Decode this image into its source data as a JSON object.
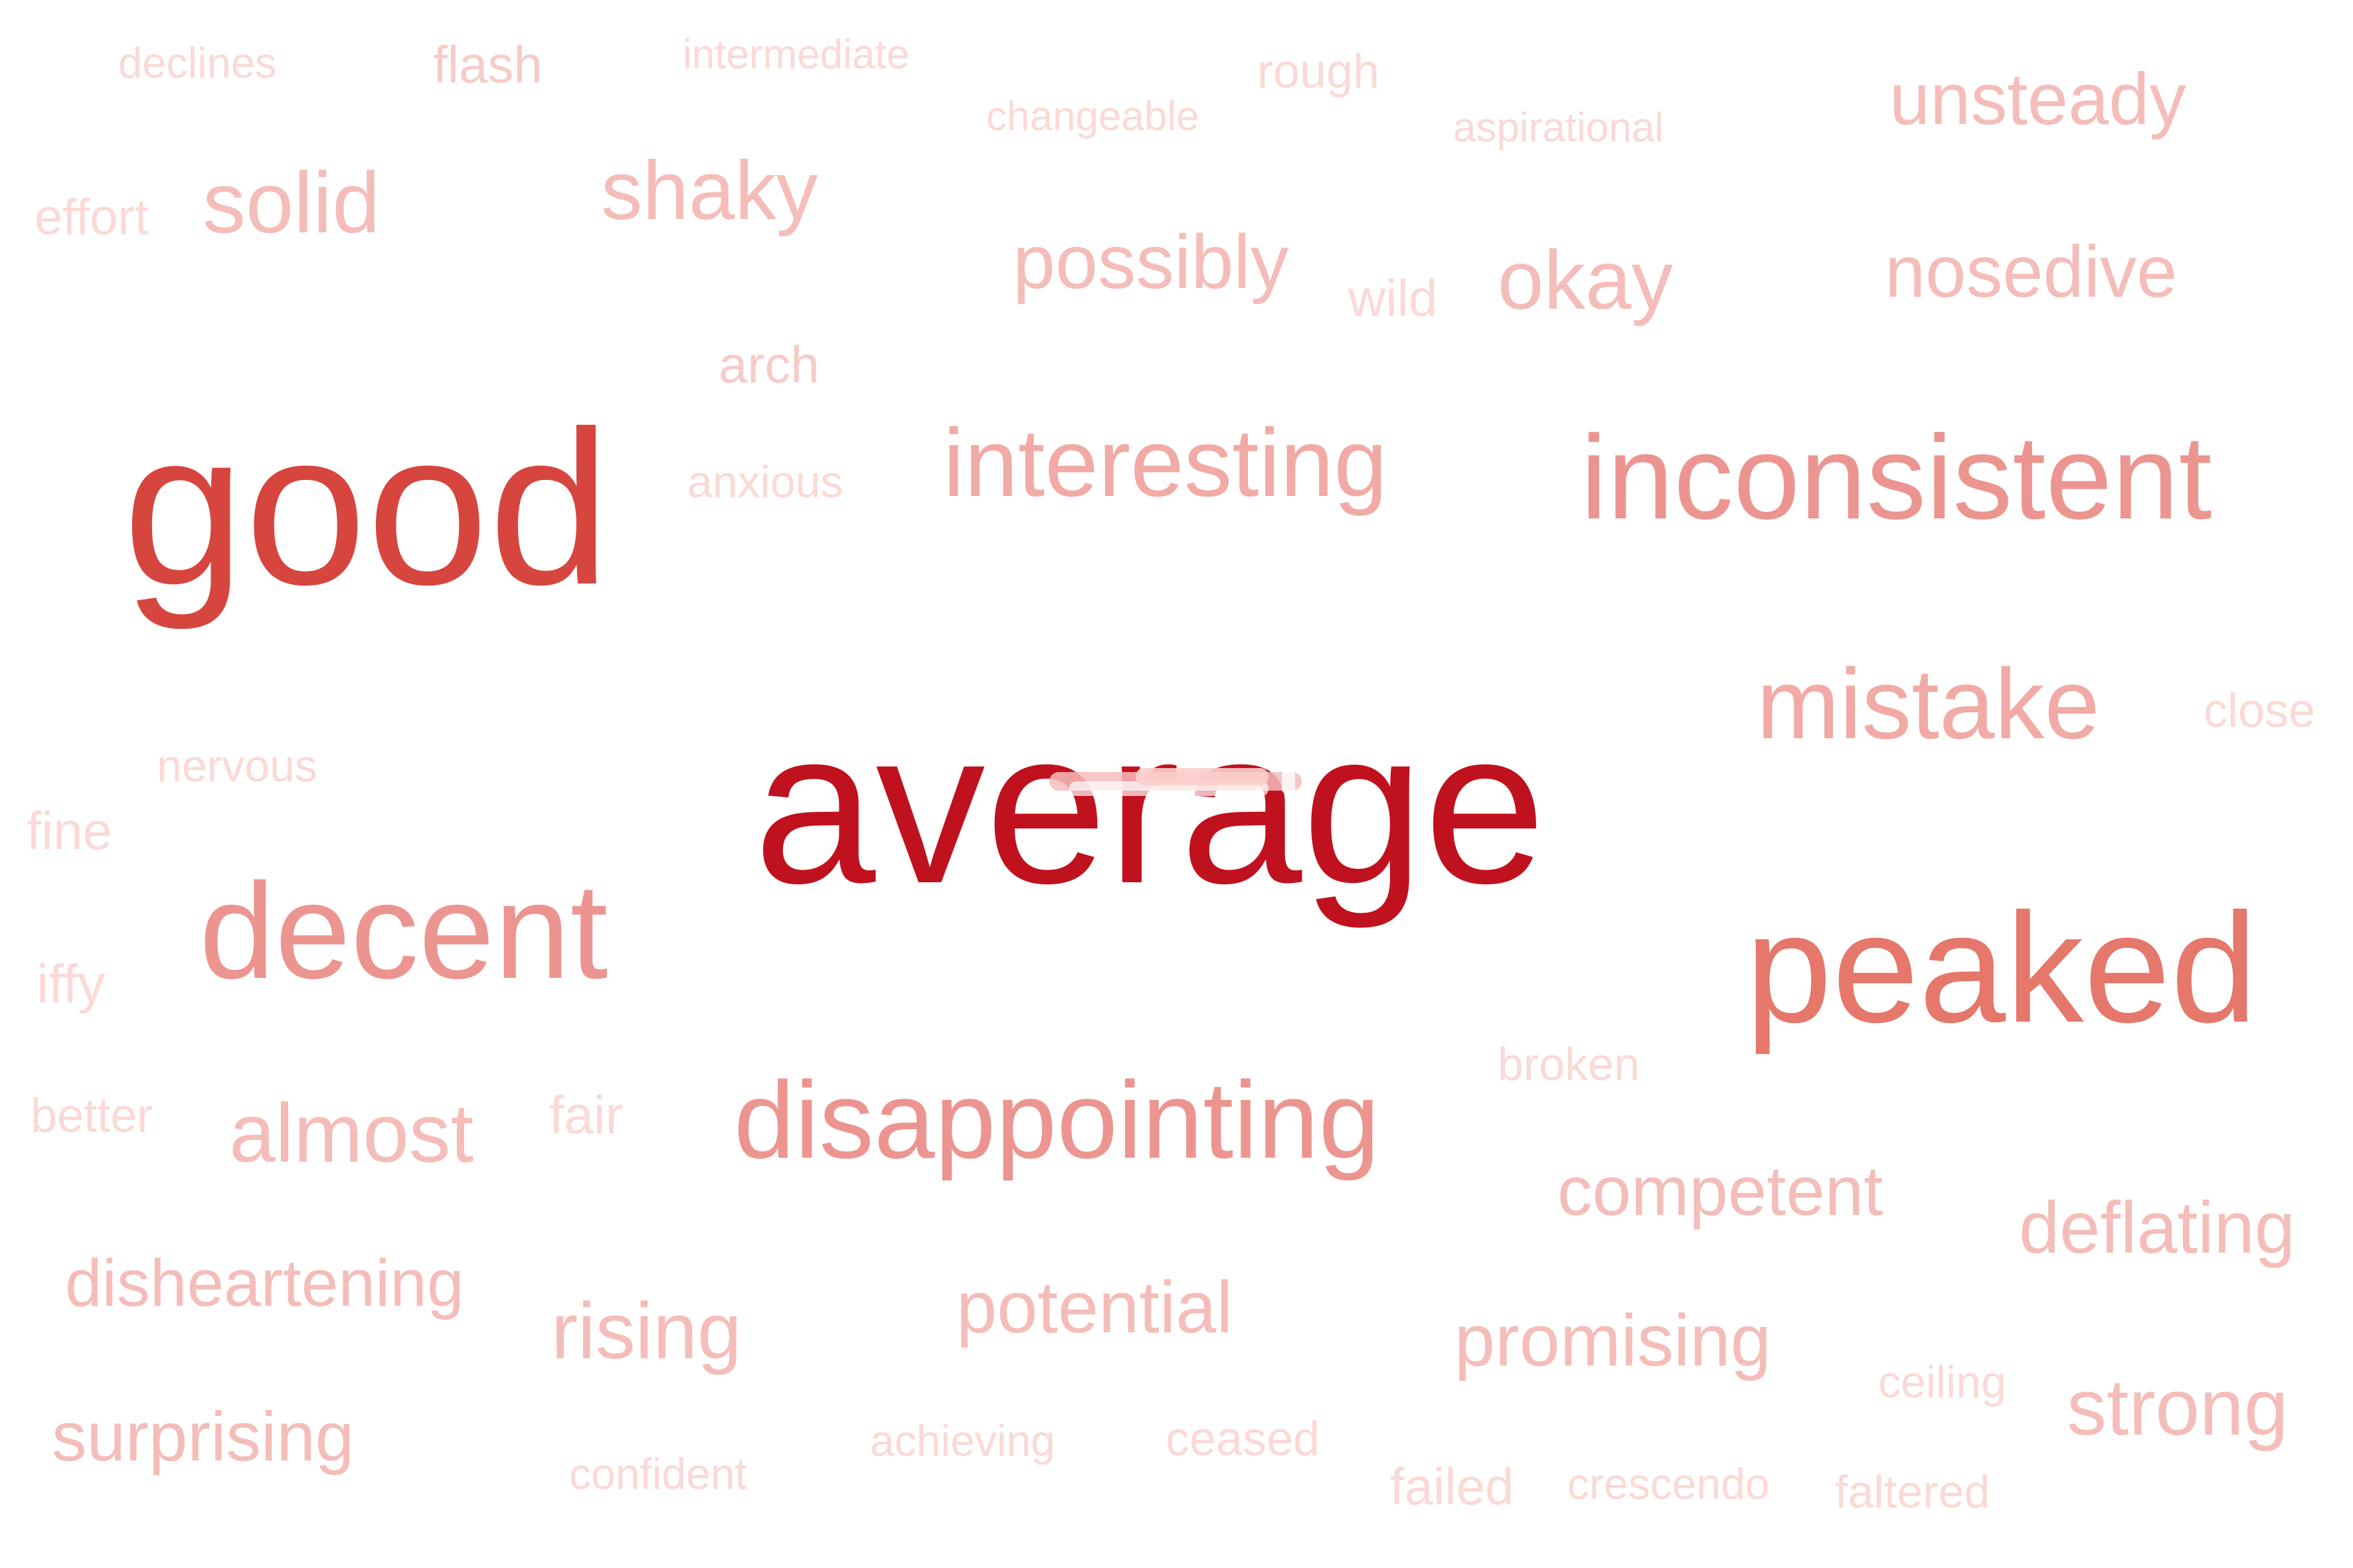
{
  "words": {
    "average": "average",
    "good": "good",
    "peaked": "peaked",
    "inconsistent": "inconsistent",
    "decent": "decent",
    "disappointing": "disappointing",
    "mistake": "mistake",
    "interesting": "interesting",
    "solid": "solid",
    "shaky": "shaky",
    "possibly": "possibly",
    "okay": "okay",
    "unsteady": "unsteady",
    "nosedive": "nosedive",
    "almost": "almost",
    "competent": "competent",
    "deflating": "deflating",
    "disheartening": "disheartening",
    "rising": "rising",
    "potential": "potential",
    "promising": "promising",
    "strong": "strong",
    "surprising": "surprising",
    "declines": "declines",
    "flash": "flash",
    "intermediate": "intermediate",
    "rough": "rough",
    "changeable": "changeable",
    "aspirational": "aspirational",
    "effort": "effort",
    "wild": "wild",
    "arch": "arch",
    "anxious": "anxious",
    "close": "close",
    "nervous": "nervous",
    "fine": "fine",
    "iffy": "iffy",
    "better": "better",
    "fair": "fair",
    "broken": "broken",
    "ceiling": "ceiling",
    "achieving": "achieving",
    "ceased": "ceased",
    "confident": "confident",
    "failed": "failed",
    "crescendo": "crescendo",
    "faltered": "faltered"
  }
}
